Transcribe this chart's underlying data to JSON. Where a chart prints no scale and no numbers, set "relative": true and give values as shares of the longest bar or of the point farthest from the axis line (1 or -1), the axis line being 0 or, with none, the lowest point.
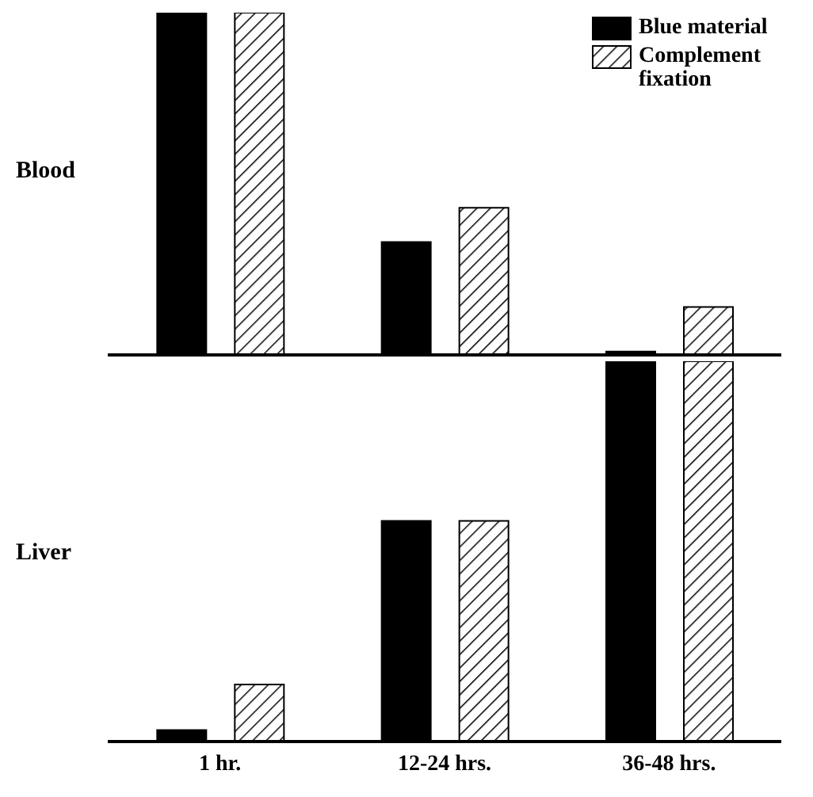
{
  "chart_data": [
    {
      "type": "bar",
      "ylabel": "Blood",
      "relative": true,
      "categories": [
        null,
        null,
        null
      ],
      "tick_labels": false,
      "legend": "top right",
      "series": [
        {
          "name": "Blue material",
          "color": "#000000",
          "values": [
            1,
            0.33,
            0.01
          ]
        },
        {
          "name": "Complement fixation",
          "color": "#000000",
          "values": [
            1,
            0.43,
            0.14
          ]
        }
      ]
    },
    {
      "type": "bar",
      "ylabel": "Liver",
      "relative": true,
      "categories": [
        "1 hr.",
        "12-24 hrs.",
        "36-48 hrs."
      ],
      "series": [
        {
          "color": "#000000",
          "values": [
            0.03,
            0.58,
            1
          ]
        },
        {
          "color": "#000000",
          "values": [
            0.15,
            0.58,
            1
          ]
        }
      ]
    }
  ]
}
